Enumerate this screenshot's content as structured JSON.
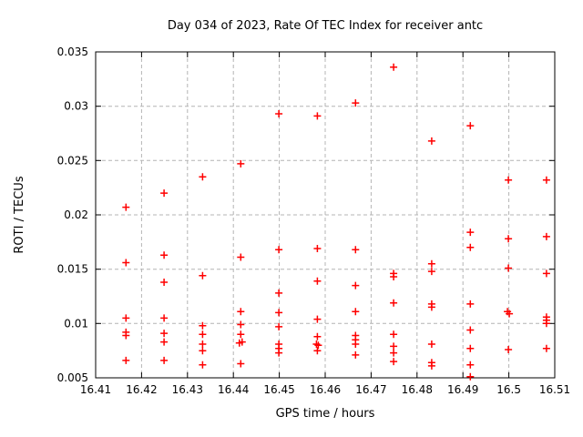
{
  "chart_data": {
    "type": "scatter",
    "title": "Day 034 of 2023, Rate Of TEC Index for receiver antc",
    "xlabel": "GPS time / hours",
    "ylabel": "ROTI / TECUs",
    "xlim": [
      16.41,
      16.51
    ],
    "ylim": [
      0.005,
      0.035
    ],
    "grid": true,
    "legend": "none",
    "colors": {
      "marker": "#ff0000",
      "grid": "#b4b4b4",
      "axis": "#000000"
    },
    "marker": {
      "shape": "plus",
      "color": "#ff0000"
    },
    "xticks": [
      {
        "label": "16.41",
        "value": 16.41
      },
      {
        "label": "16.42",
        "value": 16.42
      },
      {
        "label": "16.43",
        "value": 16.43
      },
      {
        "label": "16.44",
        "value": 16.44
      },
      {
        "label": "16.45",
        "value": 16.45
      },
      {
        "label": "16.46",
        "value": 16.46
      },
      {
        "label": "16.47",
        "value": 16.47
      },
      {
        "label": "16.48",
        "value": 16.48
      },
      {
        "label": "16.49",
        "value": 16.49
      },
      {
        "label": "16.5",
        "value": 16.5
      },
      {
        "label": "16.51",
        "value": 16.51
      }
    ],
    "yticks": [
      {
        "label": "0.005",
        "value": 0.005
      },
      {
        "label": "0.01",
        "value": 0.01
      },
      {
        "label": "0.015",
        "value": 0.015
      },
      {
        "label": "0.02",
        "value": 0.02
      },
      {
        "label": "0.025",
        "value": 0.025
      },
      {
        "label": "0.03",
        "value": 0.03
      },
      {
        "label": "0.035",
        "value": 0.035
      }
    ],
    "series": [
      {
        "name": "ROTI",
        "points": [
          [
            16.4166,
            0.0207
          ],
          [
            16.4166,
            0.0156
          ],
          [
            16.4166,
            0.0105
          ],
          [
            16.4166,
            0.0092
          ],
          [
            16.4166,
            0.0089
          ],
          [
            16.4166,
            0.0066
          ],
          [
            16.4249,
            0.022
          ],
          [
            16.4249,
            0.0163
          ],
          [
            16.4249,
            0.0138
          ],
          [
            16.4249,
            0.0105
          ],
          [
            16.4249,
            0.0091
          ],
          [
            16.4249,
            0.0083
          ],
          [
            16.4249,
            0.0066
          ],
          [
            16.4333,
            0.0235
          ],
          [
            16.4333,
            0.0144
          ],
          [
            16.4333,
            0.0098
          ],
          [
            16.4333,
            0.009
          ],
          [
            16.4333,
            0.0081
          ],
          [
            16.4333,
            0.0075
          ],
          [
            16.4333,
            0.0062
          ],
          [
            16.4416,
            0.0247
          ],
          [
            16.4416,
            0.0161
          ],
          [
            16.4416,
            0.0111
          ],
          [
            16.4416,
            0.0099
          ],
          [
            16.4416,
            0.009
          ],
          [
            16.4413,
            0.0082
          ],
          [
            16.4419,
            0.0083
          ],
          [
            16.4416,
            0.0063
          ],
          [
            16.4499,
            0.0293
          ],
          [
            16.4499,
            0.0168
          ],
          [
            16.4499,
            0.0128
          ],
          [
            16.4499,
            0.011
          ],
          [
            16.4499,
            0.0097
          ],
          [
            16.4499,
            0.0081
          ],
          [
            16.4499,
            0.0077
          ],
          [
            16.4499,
            0.0073
          ],
          [
            16.4583,
            0.0291
          ],
          [
            16.4583,
            0.0169
          ],
          [
            16.4583,
            0.0139
          ],
          [
            16.4583,
            0.0104
          ],
          [
            16.4583,
            0.0088
          ],
          [
            16.4581,
            0.0081
          ],
          [
            16.4585,
            0.008
          ],
          [
            16.4583,
            0.0075
          ],
          [
            16.4666,
            0.0303
          ],
          [
            16.4666,
            0.0168
          ],
          [
            16.4666,
            0.0135
          ],
          [
            16.4666,
            0.0111
          ],
          [
            16.4666,
            0.0089
          ],
          [
            16.4666,
            0.0085
          ],
          [
            16.4666,
            0.0081
          ],
          [
            16.4666,
            0.0071
          ],
          [
            16.4749,
            0.0336
          ],
          [
            16.4749,
            0.0146
          ],
          [
            16.4749,
            0.0143
          ],
          [
            16.4749,
            0.0119
          ],
          [
            16.4749,
            0.009
          ],
          [
            16.4749,
            0.0079
          ],
          [
            16.4749,
            0.0073
          ],
          [
            16.4749,
            0.0065
          ],
          [
            16.4832,
            0.0268
          ],
          [
            16.4832,
            0.0155
          ],
          [
            16.4832,
            0.0148
          ],
          [
            16.4832,
            0.0118
          ],
          [
            16.4832,
            0.0115
          ],
          [
            16.4832,
            0.0081
          ],
          [
            16.4832,
            0.0064
          ],
          [
            16.4832,
            0.0061
          ],
          [
            16.4916,
            0.0282
          ],
          [
            16.4916,
            0.0184
          ],
          [
            16.4916,
            0.017
          ],
          [
            16.4916,
            0.0118
          ],
          [
            16.4916,
            0.0094
          ],
          [
            16.4916,
            0.0077
          ],
          [
            16.4916,
            0.0062
          ],
          [
            16.4916,
            0.0051
          ],
          [
            16.4999,
            0.0232
          ],
          [
            16.4999,
            0.0178
          ],
          [
            16.4999,
            0.0151
          ],
          [
            16.4997,
            0.0111
          ],
          [
            16.5001,
            0.0109
          ],
          [
            16.4999,
            0.0076
          ],
          [
            16.5082,
            0.0232
          ],
          [
            16.5082,
            0.018
          ],
          [
            16.5082,
            0.0146
          ],
          [
            16.5082,
            0.0106
          ],
          [
            16.5082,
            0.0103
          ],
          [
            16.5082,
            0.01
          ],
          [
            16.5082,
            0.0077
          ]
        ]
      }
    ]
  }
}
